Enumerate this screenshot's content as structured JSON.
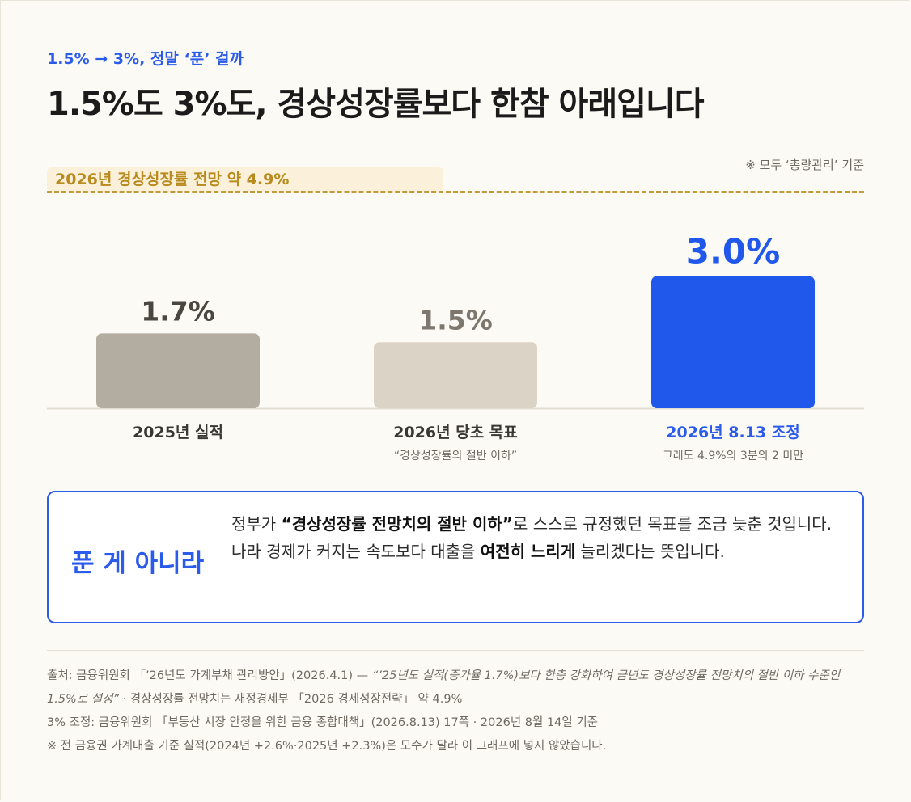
{
  "kicker": "1.5% → 3%, 정말 ‘푼’ 걸까",
  "title": "1.5%도 3%도, 경상성장률보다 한참 아래입니다",
  "basis_note": "※ 모두 ‘총량관리’ 기준",
  "reference_label": "2026년 경상성장률 전망 약 4.9%",
  "chart_data": {
    "type": "bar",
    "title": "",
    "xlabel": "",
    "ylabel": "",
    "grid": false,
    "categories": [
      "2025년 실적",
      "2026년 당초 목표",
      "2026년 8.13 조정"
    ],
    "values": [
      1.7,
      1.5,
      3.0
    ],
    "value_labels": [
      "1.7%",
      "1.5%",
      "3.0%"
    ],
    "subtitles": [
      "",
      "“경상성장률의 절반 이하”",
      "그래도 4.9%의 3분의 2 미만"
    ],
    "reference_line": {
      "value": 4.9
    },
    "colors": {
      "bars": [
        "#B3ACA0",
        "#DBD3C6",
        "#2158EC"
      ],
      "value_labels": [
        "#4A4741",
        "#7D776D",
        "#2158EC"
      ],
      "category_labels": [
        "#3A3833",
        "#3A3833",
        "#2B5BEA"
      ],
      "reference": "#C29A37"
    }
  },
  "callout": {
    "head": "푼 게 아니라",
    "body_1": "정부가 ",
    "body_bold_1": "“경상성장률 전망치의 절반 이하”",
    "body_2": "로 스스로 규정했던 목표를 조금 늦춘 것입니다. 나라 경제가 커지는 속도보다 대출을 ",
    "body_bold_2": "여전히 느리게",
    "body_3": " 늘리겠다는 뜻입니다."
  },
  "source": {
    "line1_a": "출처: 금융위원회 「’26년도 가계부채 관리방안」(2026.4.1) — ",
    "line1_quote": "“’25년도 실적(증가율 1.7%)보다 한층 강화하여 금년도 경상성장률 전망치의 절반 이하 수준인 1.5%로 설정”",
    "line1_b": " · 경상성장률 전망치는 재정경제부 「2026 경제성장전략」 약 4.9%",
    "line2": "3% 조정: 금융위원회 「부동산 시장 안정을 위한 금융 종합대책」(2026.8.13) 17쪽 · 2026년 8월 14일 기준",
    "line3": "※ 전 금융권 가계대출 기준 실적(2024년 +2.6%·2025년 +2.3%)은 모수가 달라 이 그래프에 넣지 않았습니다."
  }
}
